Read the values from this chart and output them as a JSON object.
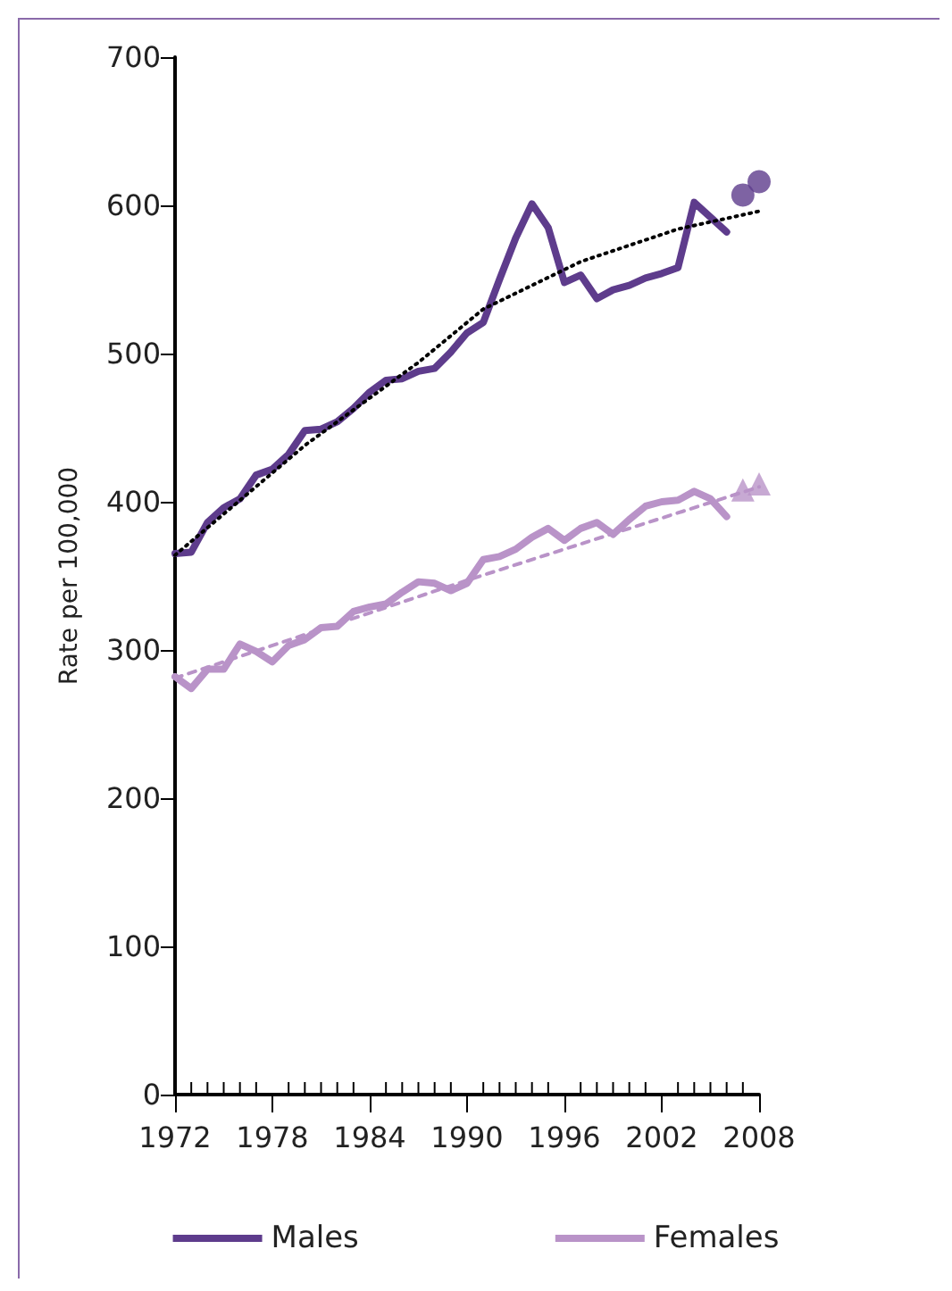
{
  "chart_data": {
    "type": "line",
    "ylabel": "Rate per 100,000",
    "x": [
      1972,
      1973,
      1974,
      1975,
      1976,
      1977,
      1978,
      1979,
      1980,
      1981,
      1982,
      1983,
      1984,
      1985,
      1986,
      1987,
      1988,
      1989,
      1990,
      1991,
      1992,
      1993,
      1994,
      1995,
      1996,
      1997,
      1998,
      1999,
      2000,
      2001,
      2002,
      2003,
      2004,
      2005,
      2006
    ],
    "series": [
      {
        "name": "Males",
        "color": "#5e3c8c",
        "values": [
          365,
          366,
          386,
          396,
          402,
          418,
          422,
          432,
          448,
          449,
          454,
          463,
          474,
          482,
          483,
          488,
          490,
          501,
          514,
          521,
          550,
          578,
          601,
          585,
          548,
          553,
          537,
          543,
          546,
          551,
          554,
          558,
          602,
          592,
          582
        ]
      },
      {
        "name": "Females",
        "color": "#b993c8",
        "values": [
          282,
          274,
          287,
          287,
          304,
          299,
          292,
          303,
          307,
          315,
          316,
          326,
          329,
          331,
          339,
          346,
          345,
          340,
          345,
          361,
          363,
          368,
          376,
          382,
          374,
          382,
          386,
          378,
          388,
          397,
          400,
          401,
          407,
          402,
          390
        ]
      },
      {
        "type": "scatter",
        "color": "#5e3c8c",
        "marker": "circle",
        "x": [
          2007,
          2008
        ],
        "values": [
          607,
          616
        ]
      },
      {
        "type": "scatter",
        "color": "#b993c8",
        "marker": "triangle",
        "x": [
          2007,
          2008
        ],
        "values": [
          408,
          412
        ]
      },
      {
        "type": "line",
        "color": "#000000",
        "line_style": "dotted",
        "x": [
          1972,
          1980,
          1987,
          1991,
          1997,
          2003,
          2008
        ],
        "values": [
          364,
          438,
          494,
          530,
          562,
          584,
          596
        ]
      },
      {
        "type": "line",
        "color": "#b993c8",
        "line_style": "dashed",
        "x": [
          1972,
          1990,
          2008
        ],
        "values": [
          281,
          347,
          410
        ]
      }
    ],
    "xlim": [
      1972,
      2008
    ],
    "xticks": [
      1972,
      {
        "value": 1973,
        "label": null
      },
      {
        "value": 1974,
        "label": null
      },
      {
        "value": 1975,
        "label": null
      },
      {
        "value": 1976,
        "label": null
      },
      {
        "value": 1977,
        "label": null
      },
      1978,
      {
        "value": 1979,
        "label": null
      },
      {
        "value": 1980,
        "label": null
      },
      {
        "value": 1981,
        "label": null
      },
      {
        "value": 1982,
        "label": null
      },
      {
        "value": 1983,
        "label": null
      },
      1984,
      {
        "value": 1985,
        "label": null
      },
      {
        "value": 1986,
        "label": null
      },
      {
        "value": 1987,
        "label": null
      },
      {
        "value": 1988,
        "label": null
      },
      {
        "value": 1989,
        "label": null
      },
      1990,
      {
        "value": 1991,
        "label": null
      },
      {
        "value": 1992,
        "label": null
      },
      {
        "value": 1993,
        "label": null
      },
      {
        "value": 1994,
        "label": null
      },
      {
        "value": 1995,
        "label": null
      },
      1996,
      {
        "value": 1997,
        "label": null
      },
      {
        "value": 1998,
        "label": null
      },
      {
        "value": 1999,
        "label": null
      },
      {
        "value": 2000,
        "label": null
      },
      {
        "value": 2001,
        "label": null
      },
      2002,
      {
        "value": 2003,
        "label": null
      },
      {
        "value": 2004,
        "label": null
      },
      {
        "value": 2005,
        "label": null
      },
      {
        "value": 2006,
        "label": null
      },
      {
        "value": 2007,
        "label": null
      },
      2008
    ],
    "ylim": [
      0,
      700
    ],
    "yticks": [
      0,
      100,
      200,
      300,
      400,
      500,
      600,
      700
    ],
    "grid": false,
    "legend": "bottom",
    "marker": "none",
    "line_style": "solid"
  }
}
